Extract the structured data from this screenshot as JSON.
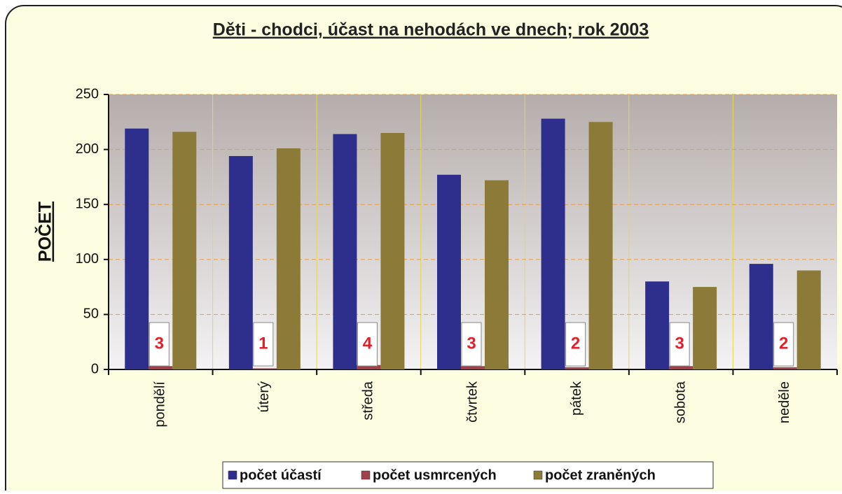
{
  "chart_data": {
    "type": "bar",
    "title": "Děti - chodci, účast na nehodách ve dnech; rok 2003",
    "y_label": "POČET",
    "categories": [
      "pondělí",
      "úterý",
      "středa",
      "čtvrtek",
      "pátek",
      "sobota",
      "neděle"
    ],
    "series": [
      {
        "name": "počet účastí",
        "color": "#2e2e8c",
        "values": [
          219,
          194,
          214,
          177,
          228,
          80,
          96
        ]
      },
      {
        "name": "počet usmrcených",
        "color": "#a0404a",
        "values": [
          3,
          1,
          4,
          3,
          2,
          3,
          2
        ]
      },
      {
        "name": "počet zraněných",
        "color": "#8c7a38",
        "values": [
          216,
          201,
          215,
          172,
          225,
          75,
          90
        ]
      }
    ],
    "ylim": [
      0,
      250
    ],
    "yticks": [
      0,
      50,
      100,
      150,
      200,
      250
    ],
    "grid": true,
    "legend": "bottom"
  }
}
